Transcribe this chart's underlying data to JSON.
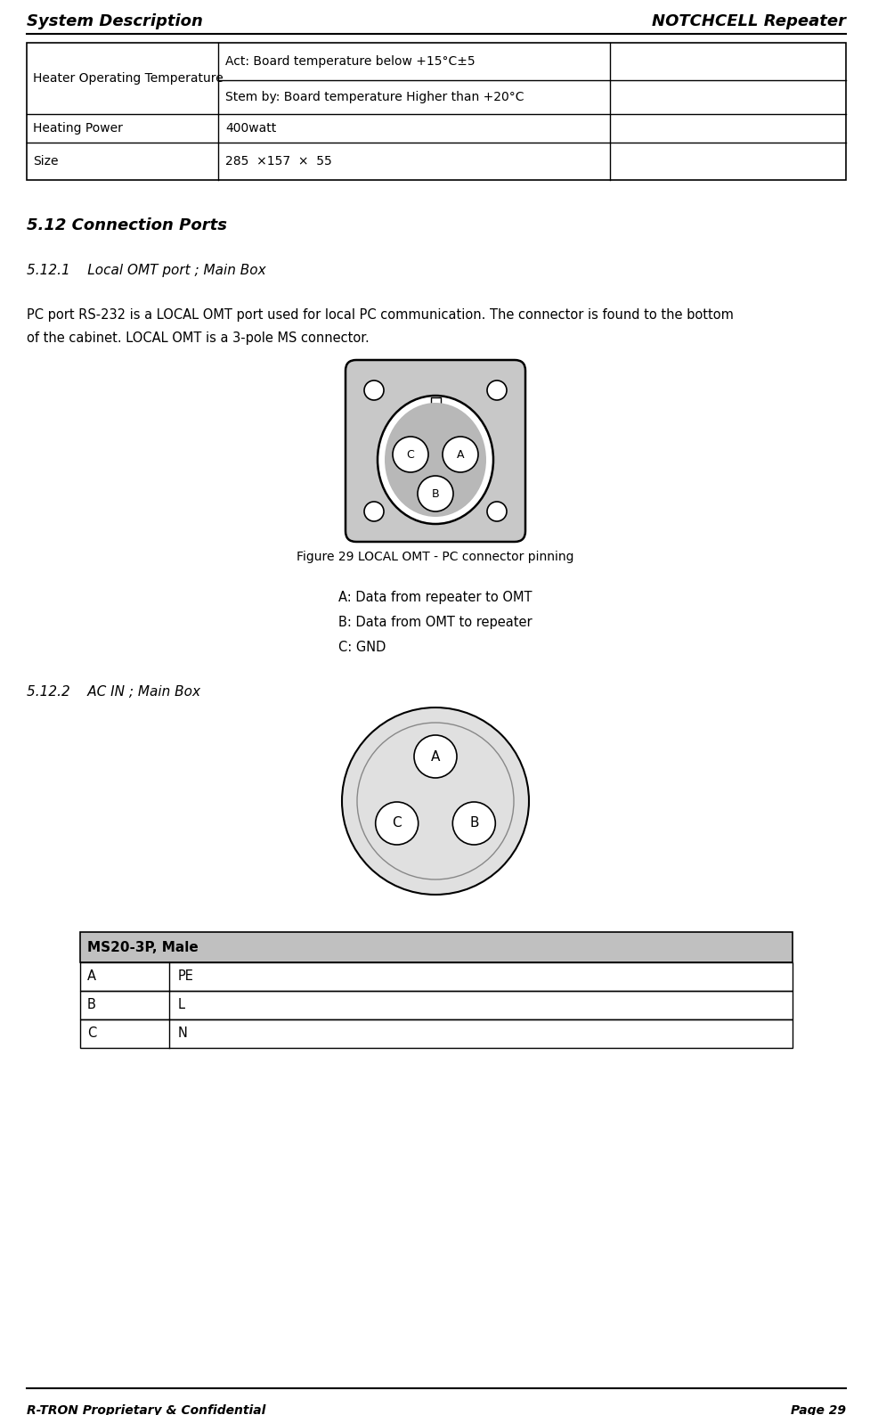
{
  "header_left": "System Description",
  "header_right": "NOTCHCELL Repeater",
  "footer_left": "R-TRON Proprietary & Confidential",
  "footer_right": "Page 29",
  "table1_rows": [
    [
      "Heater Operating Temperature",
      "Act: Board temperature below +15°C±5",
      ""
    ],
    [
      "",
      "Stem by: Board temperature Higher than +20°C",
      ""
    ],
    [
      "Heating Power",
      "400watt",
      ""
    ],
    [
      "Size",
      "285  ×157  ×  55",
      ""
    ]
  ],
  "section_512": "5.12 Connection Ports",
  "section_5121": "5.12.1    Local OMT port ; Main Box",
  "para_5121_line1": "PC port RS-232 is a LOCAL OMT port used for local PC communication. The connector is found to the bottom",
  "para_5121_line2": "of the cabinet. LOCAL OMT is a 3-pole MS connector.",
  "fig29_caption": "Figure 29 LOCAL OMT - PC connector pinning",
  "pin_label_A": "A: Data from repeater to OMT",
  "pin_label_B": "B: Data from OMT to repeater",
  "pin_label_C": "C: GND",
  "section_5122": "5.12.2    AC IN ; Main Box",
  "table2_header": "MS20-3P, Male",
  "table2_rows": [
    [
      "A",
      "PE"
    ],
    [
      "B",
      "L"
    ],
    [
      "C",
      "N"
    ]
  ],
  "bg_color": "#ffffff",
  "text_color": "#000000",
  "connector1_bg": "#c8c8c8",
  "connector2_bg": "#e0e0e0",
  "table2_header_bg": "#c0c0c0"
}
